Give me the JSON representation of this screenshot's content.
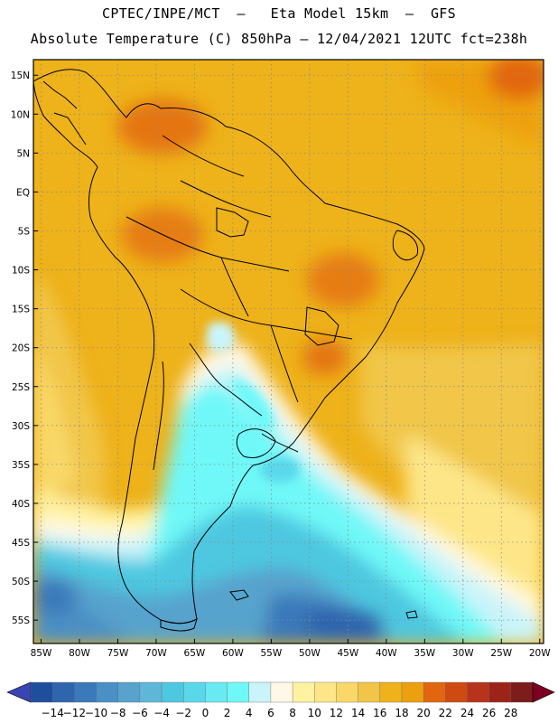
{
  "title": {
    "line1": "CPTEC/INPE/MCT  –   Eta Model 15km  –  GFS",
    "line2": "Absolute Temperature (C) 850hPa – 12/04/2021 12UTC fct=238h"
  },
  "map": {
    "lat_labels": [
      "15N",
      "10N",
      "5N",
      "EQ",
      "5S",
      "10S",
      "15S",
      "20S",
      "25S",
      "30S",
      "35S",
      "40S",
      "45S",
      "50S",
      "55S"
    ],
    "lon_labels": [
      "85W",
      "80W",
      "75W",
      "70W",
      "65W",
      "60W",
      "55W",
      "50W",
      "45W",
      "40W",
      "35W",
      "30W",
      "25W",
      "20W"
    ],
    "lat_range": [
      -58,
      17
    ],
    "lon_range": [
      -86,
      -19.5
    ]
  },
  "colorbar": {
    "labels": [
      "−14",
      "−12",
      "−10",
      "−8",
      "−6",
      "−4",
      "−2",
      "0",
      "2",
      "4",
      "6",
      "8",
      "10",
      "12",
      "14",
      "16",
      "18",
      "20",
      "22",
      "24",
      "26",
      "28"
    ],
    "colors": [
      "#1f4e9c",
      "#2f65ad",
      "#3a79ba",
      "#4a8fc6",
      "#57a3ce",
      "#5fb7d8",
      "#4ec8e0",
      "#5ad8ea",
      "#69eaf3",
      "#6ff8f8",
      "#c9f4fa",
      "#fff8e6",
      "#fff2a0",
      "#fde688",
      "#f9d869",
      "#f1c648",
      "#eeb21a",
      "#eda00f",
      "#e2660f",
      "#cf4a12",
      "#b7331a",
      "#9b2419",
      "#7c1c1b"
    ],
    "low_color": "#3b44b5",
    "high_color": "#7d0020"
  }
}
